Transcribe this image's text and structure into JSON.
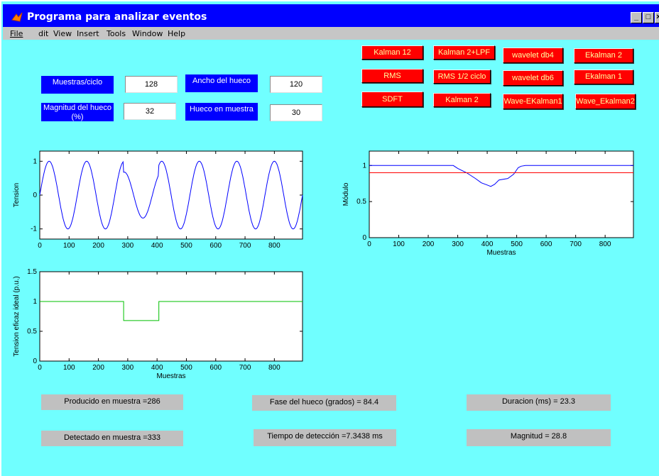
{
  "window": {
    "title": "Programa para analizar eventos"
  },
  "menu": {
    "items": [
      "File",
      "dit",
      "View",
      "Insert",
      "Tools",
      "Window",
      "Help"
    ]
  },
  "params": {
    "muestras_label": "Muestras/ciclo",
    "muestras_value": "128",
    "ancho_label": "Ancho del hueco",
    "ancho_value": "120",
    "magnitud_label": "Magnitud del hueco (%)",
    "magnitud_value": "32",
    "hueco_label": "Hueco en muestra",
    "hueco_value": "30"
  },
  "buttons": {
    "kalman12": "Kalman 12",
    "kalman2lpf": "Kalman 2+LPF",
    "wavelet_db4": "wavelet db4",
    "ekalman2": "Ekalman 2",
    "rms": "RMS",
    "rms_half": "RMS 1/2 ciclo",
    "wavelet_db6": "wavelet db6",
    "ekalman1": "Ekalman 1",
    "sdft": "SDFT",
    "kalman2": "Kalman 2",
    "wave_ekalman1": "Wave-EKalman1",
    "wave_ekalman2": "Wave_Ekalman2"
  },
  "results": {
    "producido": "Producido en muestra =286",
    "detectado": "Detectado en muestra =333",
    "fase": "Fase del hueco (grados) = 84.4",
    "tiempo": "Tiempo de detección =7.3438  ms",
    "duracion": "Duracion (ms) = 23.3",
    "magnitud": "Magnitud = 28.8"
  },
  "colors": {
    "background": "#70ffff",
    "title_bar": "#0000ff",
    "button": "#ff0000",
    "label": "#0000ff"
  },
  "chart_data": [
    {
      "type": "line",
      "ylabel": "Tension",
      "xlabel": "",
      "xlim": [
        0,
        896
      ],
      "ylim": [
        -1.3,
        1.3
      ],
      "xticks": [
        "0",
        "100",
        "200",
        "300",
        "400",
        "500",
        "600",
        "700",
        "800"
      ],
      "yticks": [
        "1",
        "0",
        "-1"
      ],
      "series": [
        {
          "color": "#0000ff",
          "description": "sine 128 samples/cycle with sag 286-406 (amplitude 0.68)"
        }
      ],
      "sag_start": 286,
      "sag_end": 406,
      "sag_amp": 0.68,
      "period": 128
    },
    {
      "type": "line",
      "ylabel": "Módulo",
      "xlabel": "Muestras",
      "xlim": [
        0,
        896
      ],
      "ylim": [
        0,
        1.2
      ],
      "xticks": [
        "0",
        "100",
        "200",
        "300",
        "400",
        "500",
        "600",
        "700",
        "800"
      ],
      "yticks": [
        "1",
        "0.5",
        "0"
      ],
      "series": [
        {
          "color": "#0000ff",
          "points": [
            [
              0,
              1
            ],
            [
              285,
              1
            ],
            [
              300,
              0.96
            ],
            [
              330,
              0.9
            ],
            [
              360,
              0.82
            ],
            [
              380,
              0.76
            ],
            [
              400,
              0.73
            ],
            [
              412,
              0.71
            ],
            [
              425,
              0.74
            ],
            [
              440,
              0.8
            ],
            [
              470,
              0.82
            ],
            [
              490,
              0.88
            ],
            [
              505,
              0.97
            ],
            [
              515,
              0.99
            ],
            [
              530,
              1
            ],
            [
              896,
              1
            ]
          ]
        },
        {
          "color": "#ff0000",
          "points": [
            [
              0,
              0.9
            ],
            [
              896,
              0.9
            ]
          ]
        }
      ]
    },
    {
      "type": "line",
      "ylabel": "Tension eficaz ideal (p.u.)",
      "xlabel": "Muestras",
      "xlim": [
        0,
        896
      ],
      "ylim": [
        0,
        1.5
      ],
      "xticks": [
        "0",
        "100",
        "200",
        "300",
        "400",
        "500",
        "600",
        "700",
        "800"
      ],
      "yticks": [
        "1.5",
        "1",
        "0.5",
        "0"
      ],
      "series": [
        {
          "color": "#00c000",
          "points": [
            [
              0,
              1
            ],
            [
              286,
              1
            ],
            [
              286,
              0.68
            ],
            [
              406,
              0.68
            ],
            [
              406,
              1
            ],
            [
              896,
              1
            ]
          ]
        }
      ]
    }
  ]
}
